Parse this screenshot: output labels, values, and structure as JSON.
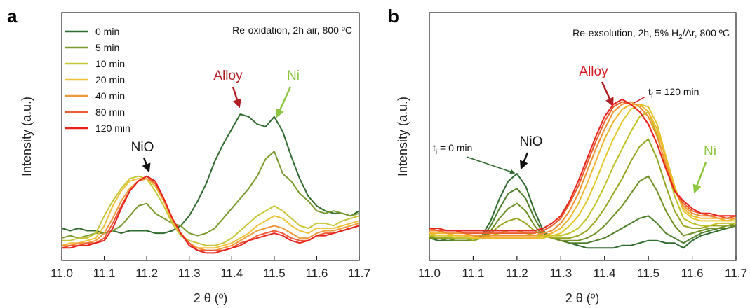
{
  "chart_data": [
    {
      "type": "line",
      "panel": "a",
      "title": [
        "Re-oxidation, 2h air, 800 ºC"
      ],
      "xlabel": "2 θ (º)",
      "ylabel": "Intensity (a.u.)",
      "legend": "upper left",
      "xlim": [
        11,
        11.7
      ],
      "ylim": [
        0,
        100
      ],
      "xticks": [
        {
          "value": 11,
          "label": "11.0"
        },
        11.1,
        11.2,
        11.3,
        11.4,
        11.5,
        11.6,
        11.7
      ],
      "annotations": [
        "NiO",
        "Alloy",
        "Ni"
      ],
      "x": [
        11,
        11.02,
        11.04,
        11.06,
        11.08,
        11.1,
        11.12,
        11.14,
        11.16,
        11.18,
        11.2,
        11.22,
        11.24,
        11.26,
        11.28,
        11.3,
        11.32,
        11.34,
        11.36,
        11.38,
        11.4,
        11.42,
        11.44,
        11.46,
        11.48,
        11.5,
        11.52,
        11.54,
        11.56,
        11.58,
        11.6,
        11.62,
        11.64,
        11.66,
        11.68,
        11.7
      ],
      "series": [
        {
          "name": "0 min",
          "color": "#2f6b2f",
          "values": [
            13,
            12,
            13,
            12,
            12,
            11,
            12,
            11,
            12,
            12,
            12,
            11,
            11,
            12,
            14,
            18,
            24,
            31,
            40,
            47,
            53,
            59,
            58,
            55,
            54,
            58,
            52,
            42,
            33,
            26,
            22,
            20,
            19,
            19,
            18,
            20
          ]
        },
        {
          "name": "5 min",
          "color": "#7a9a2e",
          "values": [
            9,
            10,
            9,
            10,
            11,
            11,
            12,
            14,
            18,
            22,
            23,
            19,
            17,
            15,
            14,
            11,
            10,
            11,
            13,
            17,
            21,
            25,
            29,
            34,
            41,
            44,
            35,
            32,
            27,
            24,
            20,
            19,
            20,
            19,
            18,
            19
          ]
        },
        {
          "name": "10 min",
          "color": "#c6c638",
          "values": [
            8,
            8,
            9,
            9,
            11,
            18,
            24,
            29,
            33,
            34,
            33,
            28,
            22,
            15,
            10,
            8,
            7,
            6,
            6,
            7,
            9,
            12,
            15,
            18,
            20,
            22,
            20,
            17,
            14,
            13,
            15,
            15,
            14,
            16,
            17,
            18
          ]
        },
        {
          "name": "20 min",
          "color": "#f0c23a",
          "values": [
            6,
            7,
            7,
            8,
            9,
            14,
            22,
            28,
            32,
            33,
            33,
            30,
            24,
            16,
            11,
            7,
            5,
            5,
            5,
            6,
            7,
            9,
            11,
            14,
            16,
            18,
            17,
            14,
            12,
            11,
            13,
            13,
            13,
            14,
            15,
            16
          ]
        },
        {
          "name": "40 min",
          "color": "#ef9a3a",
          "values": [
            6,
            6,
            7,
            7,
            8,
            11,
            17,
            24,
            29,
            32,
            33,
            31,
            24,
            17,
            11,
            7,
            5,
            4,
            4,
            5,
            6,
            8,
            10,
            12,
            13,
            14,
            13,
            11,
            9,
            9,
            11,
            12,
            12,
            13,
            14,
            15
          ]
        },
        {
          "name": "80 min",
          "color": "#ec5a36",
          "values": [
            5,
            6,
            6,
            7,
            7,
            9,
            15,
            22,
            28,
            32,
            34,
            31,
            25,
            17,
            11,
            7,
            4,
            4,
            4,
            4,
            5,
            7,
            8,
            10,
            11,
            12,
            11,
            9,
            8,
            8,
            10,
            11,
            11,
            12,
            13,
            14
          ]
        },
        {
          "name": "120 min",
          "color": "#e8201e",
          "values": [
            5,
            5,
            6,
            6,
            7,
            8,
            13,
            21,
            28,
            32,
            34,
            32,
            25,
            17,
            11,
            6,
            4,
            3,
            3,
            4,
            5,
            6,
            8,
            9,
            10,
            11,
            10,
            8,
            7,
            8,
            10,
            10,
            11,
            12,
            13,
            14
          ]
        }
      ]
    },
    {
      "type": "line",
      "panel": "b",
      "title": [
        "Re-exsolution, 2h, 5% H",
        "2",
        "/Ar, 800 ºC"
      ],
      "xlabel": "2 θ (º)",
      "ylabel": "Intensity (a.u.)",
      "xlim": [
        11,
        11.7
      ],
      "ylim": [
        0,
        100
      ],
      "xticks": [
        {
          "value": 11,
          "label": "11.0"
        },
        11.1,
        11.2,
        11.3,
        11.4,
        11.5,
        11.6,
        11.7
      ],
      "annotations": [
        "NiO",
        "Alloy",
        "Ni"
      ],
      "time_labels": [
        [
          "t",
          "i",
          " = 0 min"
        ],
        [
          "t",
          "f",
          " = 120 min"
        ]
      ],
      "x": [
        11,
        11.02,
        11.04,
        11.06,
        11.08,
        11.1,
        11.12,
        11.14,
        11.16,
        11.18,
        11.2,
        11.22,
        11.24,
        11.26,
        11.28,
        11.3,
        11.32,
        11.34,
        11.36,
        11.38,
        11.4,
        11.42,
        11.44,
        11.46,
        11.48,
        11.5,
        11.52,
        11.54,
        11.56,
        11.58,
        11.6,
        11.62,
        11.64,
        11.66,
        11.68,
        11.7
      ],
      "series": [
        {
          "color": "#2f6b2f",
          "values": [
            9,
            8,
            8,
            8,
            8,
            8,
            10,
            16,
            25,
            32,
            35,
            30,
            20,
            12,
            9,
            8,
            7,
            6,
            5,
            5,
            5,
            5,
            6,
            6,
            7,
            8,
            8,
            7,
            7,
            5,
            8,
            10,
            11,
            12,
            13,
            14
          ]
        },
        {
          "color": "#4e7f2a",
          "values": [
            9,
            9,
            8,
            8,
            8,
            8,
            9,
            14,
            21,
            27,
            29,
            25,
            17,
            11,
            9,
            8,
            7,
            7,
            7,
            8,
            9,
            11,
            13,
            15,
            17,
            18,
            15,
            11,
            9,
            7,
            9,
            11,
            12,
            13,
            13,
            14
          ]
        },
        {
          "color": "#6f8f25",
          "values": [
            9,
            9,
            9,
            8,
            8,
            8,
            9,
            12,
            17,
            21,
            23,
            20,
            14,
            10,
            9,
            8,
            8,
            8,
            9,
            11,
            14,
            18,
            22,
            27,
            32,
            34,
            28,
            20,
            14,
            10,
            11,
            12,
            13,
            13,
            14,
            14
          ]
        },
        {
          "color": "#97a521",
          "values": [
            10,
            9,
            9,
            9,
            9,
            8,
            9,
            11,
            14,
            16,
            17,
            15,
            12,
            10,
            9,
            9,
            9,
            10,
            12,
            16,
            21,
            27,
            33,
            40,
            46,
            49,
            41,
            30,
            20,
            14,
            13,
            13,
            14,
            14,
            14,
            15
          ]
        },
        {
          "color": "#c2c226",
          "values": [
            10,
            10,
            10,
            9,
            9,
            9,
            9,
            10,
            11,
            12,
            12,
            11,
            10,
            10,
            10,
            10,
            11,
            13,
            17,
            23,
            30,
            38,
            45,
            52,
            58,
            60,
            51,
            38,
            26,
            17,
            15,
            14,
            14,
            15,
            15,
            15
          ]
        },
        {
          "color": "#e3c72b",
          "values": [
            11,
            10,
            10,
            10,
            10,
            9,
            9,
            9,
            9,
            9,
            9,
            9,
            9,
            9,
            10,
            11,
            14,
            18,
            24,
            32,
            41,
            49,
            56,
            61,
            63,
            62,
            55,
            42,
            30,
            20,
            17,
            16,
            16,
            16,
            16,
            16
          ]
        },
        {
          "color": "#f1b52d",
          "values": [
            11,
            11,
            11,
            10,
            10,
            10,
            9,
            9,
            9,
            9,
            9,
            9,
            9,
            10,
            11,
            13,
            17,
            23,
            31,
            40,
            49,
            56,
            61,
            63,
            63,
            60,
            53,
            41,
            29,
            21,
            18,
            17,
            17,
            17,
            16,
            17
          ]
        },
        {
          "color": "#ee9030",
          "values": [
            12,
            12,
            11,
            11,
            11,
            10,
            10,
            10,
            10,
            10,
            10,
            10,
            10,
            11,
            12,
            15,
            20,
            27,
            36,
            45,
            53,
            60,
            63,
            64,
            62,
            58,
            50,
            39,
            28,
            22,
            19,
            18,
            18,
            17,
            17,
            17
          ]
        },
        {
          "color": "#ea5a2a",
          "values": [
            13,
            12,
            12,
            12,
            11,
            11,
            11,
            11,
            11,
            11,
            11,
            11,
            11,
            12,
            14,
            17,
            23,
            30,
            39,
            48,
            56,
            62,
            64,
            63,
            60,
            55,
            47,
            37,
            28,
            23,
            20,
            19,
            18,
            18,
            17,
            18
          ]
        },
        {
          "color": "#e8221e",
          "values": [
            13,
            13,
            12,
            12,
            12,
            12,
            12,
            12,
            12,
            12,
            12,
            12,
            12,
            13,
            15,
            18,
            24,
            32,
            41,
            50,
            58,
            63,
            65,
            63,
            60,
            55,
            47,
            37,
            28,
            24,
            21,
            19,
            19,
            18,
            18,
            18
          ]
        }
      ]
    }
  ]
}
